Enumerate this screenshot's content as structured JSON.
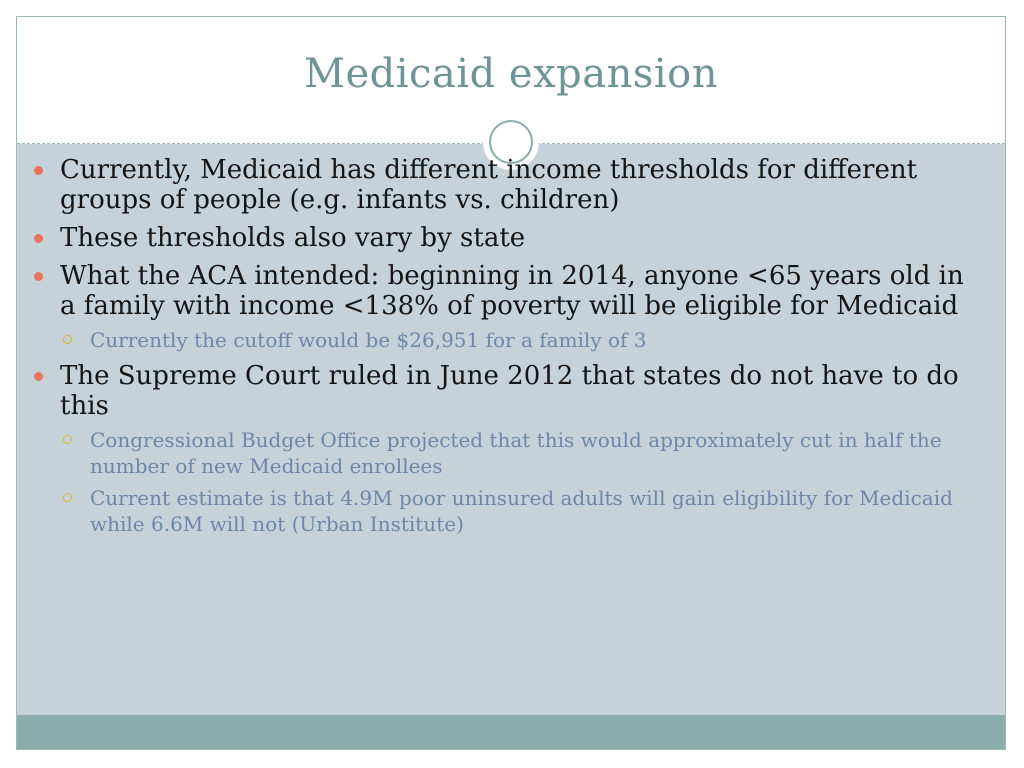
{
  "slide": {
    "title": "Medicaid expansion",
    "colors": {
      "title": "#6f9496",
      "content_background": "#c6d2d9",
      "footer_bar": "#8aacad",
      "level1_bullet": "#e8755a",
      "level2_bullet": "#d7b42a",
      "level1_text": "#141414",
      "level2_text": "#6e86a8"
    },
    "bullets": [
      {
        "text": "Currently, Medicaid has different income thresholds for different groups of people (e.g. infants vs. children)"
      },
      {
        "text": "These thresholds also vary by state"
      },
      {
        "text": "What the ACA intended: beginning in 2014, anyone <65 years old in a family with income <138% of poverty will be eligible for Medicaid"
      },
      {
        "text": "Currently the cutoff would be $26,951 for a family of 3"
      },
      {
        "text": "The Supreme Court ruled in June 2012 that states do not have to do this"
      },
      {
        "text": "Congressional Budget Office projected that this would approximately cut in half the number of new Medicaid enrollees"
      },
      {
        "text": "Current estimate is that 4.9M poor uninsured adults will gain eligibility for Medicaid while 6.6M will not (Urban Institute)"
      }
    ]
  }
}
